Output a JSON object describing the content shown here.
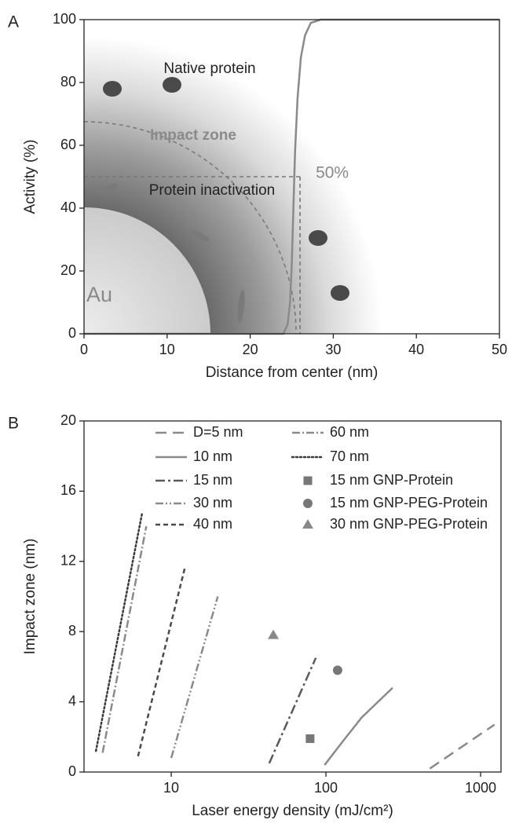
{
  "chart_data": [
    {
      "type": "line",
      "panel_label": "A",
      "x_label": "Distance from center (nm)",
      "y_label": "Activity (%)",
      "xlim": [
        0,
        50
      ],
      "ylim": [
        0,
        100
      ],
      "xticks": [
        0,
        10,
        20,
        30,
        40,
        50
      ],
      "yticks": [
        0,
        20,
        40,
        60,
        80,
        100
      ],
      "series": [
        {
          "color": "#8a8a8a",
          "width": 2.5,
          "x": [
            0,
            24,
            24.5,
            24.8,
            25,
            25.2,
            25.4,
            25.7,
            26.1,
            26.6,
            27.3,
            28.5,
            50
          ],
          "values": [
            0,
            0,
            3,
            10,
            22,
            40,
            58,
            75,
            88,
            95,
            99,
            100,
            100
          ]
        }
      ],
      "threshold": {
        "x": 26,
        "y": 50,
        "label": "50%",
        "color": "#8a8a8a"
      },
      "annotations": [
        "Native protein",
        "Impact zone",
        "Protein inactivation",
        "Au"
      ]
    },
    {
      "type": "line",
      "panel_label": "B",
      "x_label": "Laser energy density (mJ/cm²)",
      "y_label": "Impact zone (nm)",
      "xscale": "log",
      "xlim": [
        2.73,
        1355
      ],
      "ylim": [
        0,
        20
      ],
      "xticks": [
        10,
        100,
        1000
      ],
      "yticks": [
        0,
        4,
        8,
        12,
        16,
        20
      ],
      "legend": "upper center",
      "series": [
        {
          "name": "D=5 nm",
          "color": "#8a8a8a",
          "dash": "14,8",
          "x": [
            470,
            1230
          ],
          "values": [
            0.2,
            2.7
          ]
        },
        {
          "name": "10 nm",
          "color": "#8a8a8a",
          "dash": "",
          "x": [
            98,
            130,
            170,
            270
          ],
          "values": [
            0.4,
            1.8,
            3.1,
            4.8
          ]
        },
        {
          "name": "15 nm",
          "color": "#5a5a5a",
          "dash": "12,4,3,4",
          "x": [
            43,
            86
          ],
          "values": [
            0.5,
            6.5
          ]
        },
        {
          "name": "30 nm",
          "color": "#8a8a8a",
          "dash": "10,3,2,3,2,3",
          "x": [
            10,
            20
          ],
          "values": [
            0.8,
            10
          ]
        },
        {
          "name": "40 nm",
          "color": "#4a4a4a",
          "dash": "6,4",
          "x": [
            6.1,
            12.3
          ],
          "values": [
            0.9,
            11.7
          ]
        },
        {
          "name": "60 nm",
          "color": "#8a8a8a",
          "dash": "10,3,2,3",
          "x": [
            3.6,
            6.9
          ],
          "values": [
            1.1,
            14
          ]
        },
        {
          "name": "70 nm",
          "color": "#3a3a3a",
          "dash": "2,3",
          "x": [
            3.26,
            6.5
          ],
          "values": [
            1.2,
            14.8
          ]
        }
      ],
      "points": [
        {
          "name": "15 nm GNP-Protein",
          "color": "#777",
          "marker": "square",
          "x": 79,
          "y": 1.9
        },
        {
          "name": "15 nm GNP-PEG-Protein",
          "color": "#777",
          "marker": "circle",
          "x": 119,
          "y": 5.8
        },
        {
          "name": "30 nm GNP-PEG-Protein",
          "color": "#888",
          "marker": "triangle",
          "x": 45.7,
          "y": 7.8
        }
      ]
    }
  ]
}
